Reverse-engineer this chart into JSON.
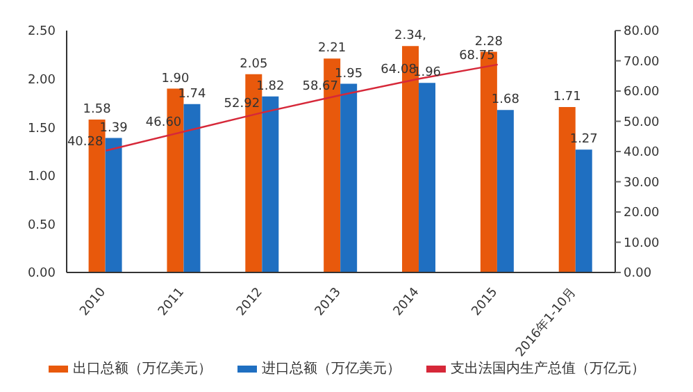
{
  "chart_data": {
    "type": "bar",
    "categories": [
      "2010",
      "2011",
      "2012",
      "2013",
      "2014",
      "2015",
      "2016年1-10月"
    ],
    "series": [
      {
        "name": "出口总额（万亿美元）",
        "color": "#e8590c",
        "values": [
          1.58,
          1.9,
          2.05,
          2.21,
          2.34,
          2.28,
          1.71
        ],
        "value_labels": [
          "1.58",
          "1.90",
          "2.05",
          "2.21",
          "2.34,",
          "2.28",
          "1.71"
        ]
      },
      {
        "name": "进口总额（万亿美元）",
        "color": "#1f6fc1",
        "values": [
          1.39,
          1.74,
          1.82,
          1.95,
          1.96,
          1.68,
          1.27
        ],
        "value_labels": [
          "1.39",
          "1.74",
          "1.82",
          "1.95",
          "1.96",
          "1.68",
          "1.27"
        ]
      },
      {
        "name": "支出法国内生产总值（万亿元）",
        "color": "#d62839",
        "type": "line",
        "axis": "y2",
        "values": [
          40.28,
          46.6,
          52.92,
          58.67,
          64.08,
          68.75,
          null
        ],
        "value_labels": [
          "40.28",
          "46.60",
          "52.92",
          "58.67",
          "64.08",
          "68.75",
          null
        ]
      }
    ],
    "ylim": [
      0,
      2.5
    ],
    "yticks": [
      {
        "value": 0,
        "label": "0.00"
      },
      {
        "value": 0.5,
        "label": "0.50"
      },
      {
        "value": 1,
        "label": "1.00"
      },
      {
        "value": 1.5,
        "label": "1.50"
      },
      {
        "value": 2,
        "label": "2.00"
      },
      {
        "value": 2.5,
        "label": "2.50"
      }
    ],
    "y2lim": [
      0,
      80
    ],
    "y2ticks": [
      {
        "value": 0,
        "label": "0.00"
      },
      {
        "value": 10,
        "label": "10.00"
      },
      {
        "value": 20,
        "label": "20.00"
      },
      {
        "value": 30,
        "label": "30.00"
      },
      {
        "value": 40,
        "label": "40.00"
      },
      {
        "value": 50,
        "label": "50.00"
      },
      {
        "value": 60,
        "label": "60.00"
      },
      {
        "value": 70,
        "label": "70.00"
      },
      {
        "value": 80,
        "label": "80.00"
      }
    ],
    "grid": false,
    "legend": "bottom",
    "marker": "none",
    "line_style": "solid"
  }
}
